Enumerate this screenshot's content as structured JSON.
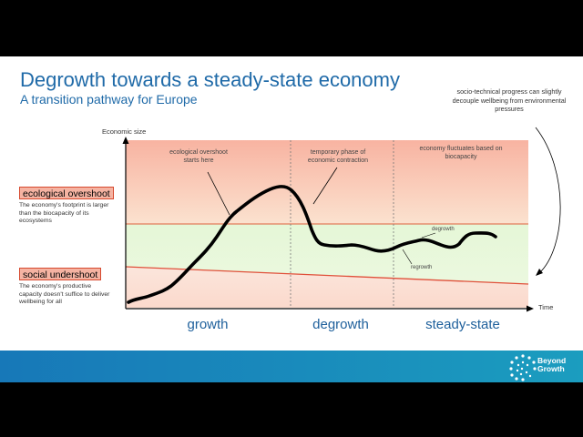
{
  "slide": {
    "title": "Degrowth towards a steady-state economy",
    "subtitle": "A transition pathway for Europe",
    "note_top_right": "socio-technical progress can slightly decouple wellbeing from environmental pressures",
    "y_axis_label": "Economic size",
    "x_axis_label": "Time",
    "ecological_overshoot": {
      "label": "ecological overshoot",
      "description": "The economy's footprint is larger than the biocapacity of its ecosystems"
    },
    "social_undershoot": {
      "label": "social undershoot",
      "description": "The economy's productive capacity doesn't suffice to deliver wellbeing for all"
    },
    "annotations": {
      "overshoot": "ecological overshoot starts here",
      "contraction": "temporary phase of economic contraction",
      "fluctuates": "economy fluctuates based on biocapacity",
      "degrowth_small": "degrowth",
      "regrowth_small": "regrowth"
    },
    "phases": [
      "growth",
      "degrowth",
      "steady-state"
    ],
    "colors": {
      "title": "#1f6aa8",
      "overshoot_zone": "#fbd3c2",
      "safe_zone": "#e6f6d8",
      "ceiling_line": "#e27d5b",
      "floor_line": "#e0503a",
      "footer": "#1778b8"
    },
    "logo": {
      "line1": "Beyond",
      "line2": "Growth",
      "icon": "dotted-circle-logo-icon"
    }
  }
}
